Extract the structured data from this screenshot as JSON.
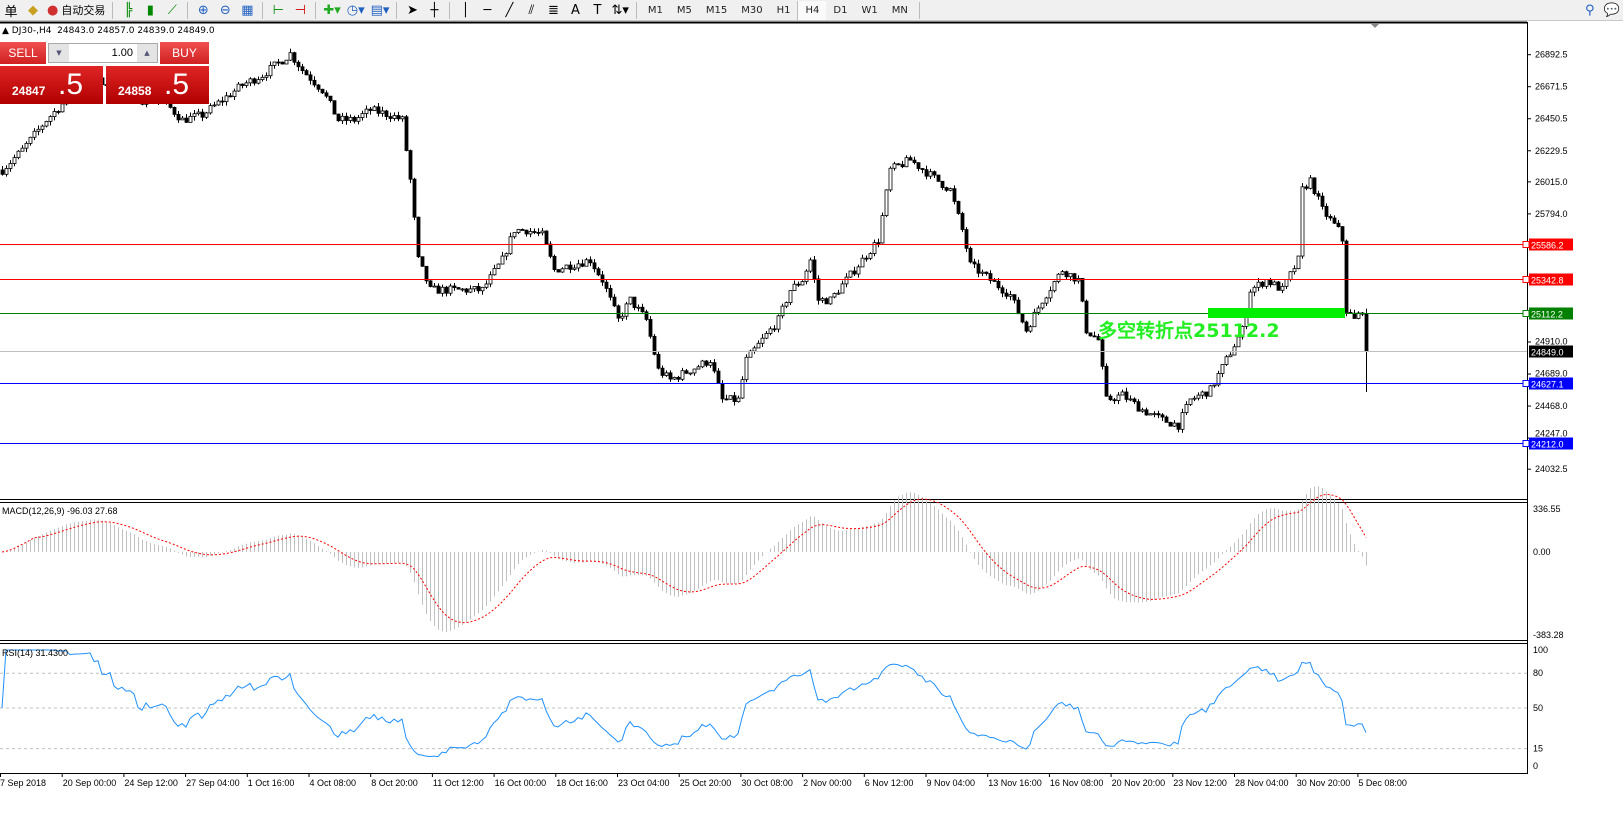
{
  "toolbar": {
    "left_partial": "单",
    "autotrade_label": "自动交易",
    "icons": [
      "gold-bars-icon",
      "autotrade-icon",
      "bar-chart-icon",
      "candlestick-icon",
      "line-chart-icon",
      "zoom-in-icon",
      "zoom-out-icon",
      "tile-windows-icon",
      "chart-shift-icon",
      "autoscroll-icon",
      "new-indicator-icon",
      "periods-clock-icon",
      "templates-icon",
      "cursor-icon",
      "crosshair-icon",
      "vertical-line-icon",
      "horizontal-line-icon",
      "trendline-icon",
      "equidistant-channel-icon",
      "fibonacci-icon",
      "text-icon",
      "text-label-icon",
      "arrows-icon",
      "search-icon",
      "chat-icon"
    ],
    "timeframes": [
      "M1",
      "M5",
      "M15",
      "M30",
      "H1",
      "H4",
      "D1",
      "W1",
      "MN"
    ],
    "active_timeframe": "H4"
  },
  "header": {
    "symbol": "DJ30-,H4",
    "ohlc": "24843.0 24857.0 24839.0 24849.0"
  },
  "trade_panel": {
    "sell_label": "SELL",
    "buy_label": "BUY",
    "lot": "1.00",
    "sell_small": "24847",
    "sell_big": ".5",
    "buy_small": "24858",
    "buy_big": ".5"
  },
  "price_axis": {
    "labels": [
      "26892.5",
      "26671.5",
      "26450.5",
      "26229.5",
      "26015.0",
      "25794.0",
      "24910.0",
      "24689.0",
      "24468.0",
      "24247.0",
      "24032.5"
    ]
  },
  "levels": [
    {
      "price": 25586.2,
      "label": "25586.2",
      "color": "#ff0000"
    },
    {
      "price": 25342.8,
      "label": "25342.8",
      "color": "#ff0000"
    },
    {
      "price": 25112.2,
      "label": "25112.2",
      "color": "#008000"
    },
    {
      "price": 24849.0,
      "label": "24849.0",
      "color": "#000000",
      "line": "#c0c0c0"
    },
    {
      "price": 24627.1,
      "label": "24627.1",
      "color": "#0000ff"
    },
    {
      "price": 24212.0,
      "label": "24212.0",
      "color": "#0000ff"
    }
  ],
  "annotation": {
    "text": "多空转折点25112.2",
    "color": "#22ee22"
  },
  "macd": {
    "label": "MACD(12,26,9) -96.03 27.68",
    "max": "336.55",
    "zero": "0.00",
    "min": "-383.28",
    "hist_color": "#c0c0c0",
    "signal_color": "#ff0000"
  },
  "rsi": {
    "label": "RSI(14) 31.4300",
    "levels": [
      "100",
      "80",
      "50",
      "15",
      "0"
    ],
    "color": "#1e90ff"
  },
  "time_axis": [
    "7 Sep 2018",
    "20 Sep 00:00",
    "24 Sep 12:00",
    "27 Sep 04:00",
    "1 Oct 16:00",
    "4 Oct 08:00",
    "8 Oct 20:00",
    "11 Oct 12:00",
    "16 Oct 00:00",
    "18 Oct 16:00",
    "23 Oct 04:00",
    "25 Oct 20:00",
    "30 Oct 08:00",
    "2 Nov 00:00",
    "6 Nov 12:00",
    "9 Nov 04:00",
    "13 Nov 16:00",
    "16 Nov 08:00",
    "20 Nov 20:00",
    "23 Nov 12:00",
    "28 Nov 04:00",
    "30 Nov 20:00",
    "5 Dec 08:00"
  ],
  "price_path": [
    [
      0,
      26097
    ],
    [
      5,
      26235
    ],
    [
      11,
      26442
    ],
    [
      16,
      26580
    ],
    [
      22,
      26718
    ],
    [
      28,
      26683
    ],
    [
      35,
      26580
    ],
    [
      40,
      26580
    ],
    [
      45,
      26442
    ],
    [
      50,
      26476
    ],
    [
      55,
      26580
    ],
    [
      60,
      26683
    ],
    [
      65,
      26752
    ],
    [
      70,
      26856
    ],
    [
      72,
      26900
    ],
    [
      75,
      26787
    ],
    [
      80,
      26649
    ],
    [
      84,
      26442
    ],
    [
      88,
      26442
    ],
    [
      92,
      26511
    ],
    [
      97,
      26476
    ],
    [
      100,
      26442
    ],
    [
      102,
      26028
    ],
    [
      104,
      25476
    ],
    [
      107,
      25269
    ],
    [
      111,
      25269
    ],
    [
      115,
      25269
    ],
    [
      120,
      25269
    ],
    [
      125,
      25476
    ],
    [
      128,
      25683
    ],
    [
      131,
      25683
    ],
    [
      135,
      25648
    ],
    [
      138,
      25407
    ],
    [
      142,
      25441
    ],
    [
      147,
      25476
    ],
    [
      150,
      25338
    ],
    [
      154,
      25062
    ],
    [
      157,
      25200
    ],
    [
      161,
      25062
    ],
    [
      164,
      24717
    ],
    [
      167,
      24648
    ],
    [
      172,
      24717
    ],
    [
      177,
      24786
    ],
    [
      180,
      24510
    ],
    [
      184,
      24510
    ],
    [
      186,
      24786
    ],
    [
      190,
      24924
    ],
    [
      194,
      25062
    ],
    [
      197,
      25269
    ],
    [
      200,
      25338
    ],
    [
      202,
      25476
    ],
    [
      204,
      25200
    ],
    [
      207,
      25200
    ],
    [
      211,
      25338
    ],
    [
      215,
      25476
    ],
    [
      219,
      25614
    ],
    [
      222,
      26097
    ],
    [
      227,
      26166
    ],
    [
      232,
      26062
    ],
    [
      237,
      25959
    ],
    [
      240,
      25683
    ],
    [
      242,
      25441
    ],
    [
      247,
      25338
    ],
    [
      252,
      25234
    ],
    [
      256,
      24993
    ],
    [
      260,
      25200
    ],
    [
      265,
      25407
    ],
    [
      269,
      25338
    ],
    [
      271,
      24993
    ],
    [
      274,
      24924
    ],
    [
      276,
      24510
    ],
    [
      280,
      24544
    ],
    [
      285,
      24441
    ],
    [
      290,
      24372
    ],
    [
      294,
      24337
    ],
    [
      297,
      24510
    ],
    [
      302,
      24579
    ],
    [
      306,
      24786
    ],
    [
      310,
      24993
    ],
    [
      312,
      25269
    ],
    [
      316,
      25338
    ],
    [
      320,
      25269
    ],
    [
      324,
      25476
    ],
    [
      325,
      25959
    ],
    [
      327,
      26028
    ],
    [
      330,
      25821
    ],
    [
      334,
      25683
    ],
    [
      335,
      25614
    ],
    [
      336,
      25131
    ],
    [
      338,
      25062
    ],
    [
      340,
      25131
    ],
    [
      341,
      24849
    ]
  ]
}
